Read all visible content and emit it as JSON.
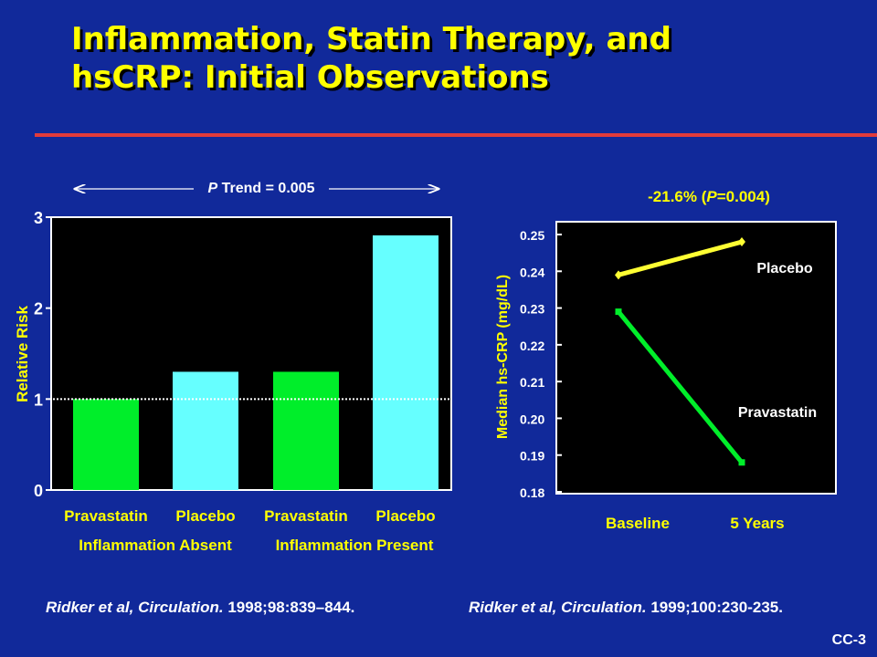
{
  "slide": {
    "title_line1": "Inflammation, Statin Therapy, and",
    "title_line2": "hsCRP: Initial Observations",
    "slide_id": "CC-3",
    "colors": {
      "background": "#11299a",
      "title": "#ffff00",
      "rule": "#e23b3b",
      "green": "#00ee2a",
      "cyan": "#66ffff",
      "yellow": "#ffff33",
      "plot_bg": "#000000"
    }
  },
  "left_chart": {
    "p_trend_label": "P",
    "p_trend_rest": " Trend = 0.005",
    "ylabel": "Relative Risk",
    "group_labels": [
      "Inflammation Absent",
      "Inflammation Present"
    ],
    "reference_line": 1
  },
  "right_chart": {
    "annotation_pct": "-21.6%  (",
    "annotation_p": "P",
    "annotation_rest": "=0.004)",
    "ylabel": "Median hs-CRP (mg/dL)",
    "placebo_label": "Placebo",
    "pravastatin_label": "Pravastatin"
  },
  "references": {
    "left_authors": "Ridker et al, ",
    "left_journal": "Circulation.",
    "left_rest": " 1998;98:839–844.",
    "right_authors": "Ridker et al, ",
    "right_journal": "Circulation.",
    "right_rest": " 1999;100:230-235."
  },
  "chart_data": [
    {
      "type": "bar",
      "categories": [
        "Pravastatin",
        "Placebo",
        "Pravastatin",
        "Placebo"
      ],
      "values": [
        1.0,
        1.3,
        1.3,
        2.8
      ],
      "ylabel": "Relative Risk",
      "yticks": [
        0,
        1,
        2,
        3
      ],
      "ylim": [
        0,
        3
      ],
      "grid": false
    },
    {
      "type": "line",
      "x": [
        "Baseline",
        "5 Years"
      ],
      "series": [
        {
          "name": "Placebo",
          "values": [
            0.239,
            0.248
          ]
        },
        {
          "name": "Pravastatin",
          "values": [
            0.229,
            0.188
          ]
        }
      ],
      "ylabel": "Median hs-CRP (mg/dL)",
      "yticks": [
        "0.18",
        "0.19",
        "0.20",
        "0.21",
        "0.22",
        "0.23",
        "0.24",
        "0.25"
      ],
      "ylim": [
        0.18,
        0.252
      ],
      "grid": false
    }
  ]
}
